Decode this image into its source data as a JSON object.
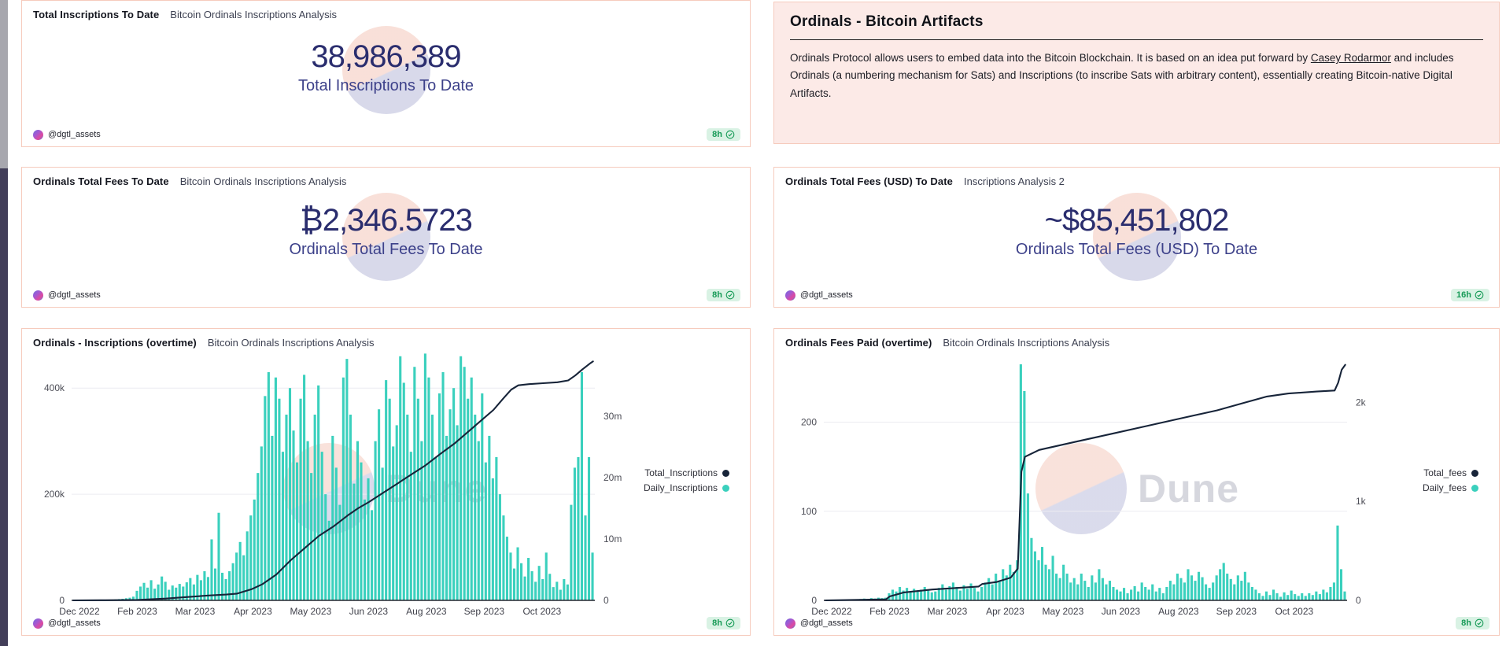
{
  "colors": {
    "bars_teal": "#3ad0bd",
    "line_navy": "#172439",
    "card_border": "#f6cbbd",
    "rose_bg": "#fceae7",
    "value_indigo": "#2a2d6e",
    "badge_green": "#169a56",
    "watermark_peach": "#f8ddd5",
    "watermark_lavender": "#d4d5e8"
  },
  "watermark": {
    "label": "Dune"
  },
  "cards": {
    "inscriptions_counter": {
      "title": "Total Inscriptions To Date",
      "subtitle": "Bitcoin Ordinals Inscriptions Analysis",
      "value": "38,986,389",
      "label": "Total Inscriptions To Date",
      "author": "@dgtl_assets",
      "updated": "8h"
    },
    "artifacts": {
      "title": "Ordinals - Bitcoin Artifacts",
      "body_1": "Ordinals Protocol allows users to embed data into the Bitcoin Blockchain. It is based on an idea put forward by ",
      "link_text": "Casey Rodarmor",
      "body_2": " and includes Ordinals (a numbering mechanism for Sats) and Inscriptions (to inscribe Sats with arbitrary content), essentially creating Bitcoin-native Digital Artifacts."
    },
    "fees_btc_counter": {
      "title": "Ordinals Total Fees To Date",
      "subtitle": "Bitcoin Ordinals Inscriptions Analysis",
      "value": "₿2,346.5723",
      "label": "Ordinals Total Fees To Date",
      "author": "@dgtl_assets",
      "updated": "8h"
    },
    "fees_usd_counter": {
      "title": "Ordinals Total Fees (USD) To Date",
      "subtitle": "Inscriptions Analysis 2",
      "value": "~$85,451,802",
      "label": "Ordinals Total Fees (USD) To Date",
      "author": "@dgtl_assets",
      "updated": "16h"
    },
    "inscriptions_chart": {
      "title": "Ordinals - Inscriptions (overtime)",
      "subtitle": "Bitcoin Ordinals Inscriptions Analysis",
      "author": "@dgtl_assets",
      "updated": "8h"
    },
    "fees_chart": {
      "title": "Ordinals Fees Paid (overtime)",
      "subtitle": "Bitcoin Ordinals Inscriptions Analysis",
      "author": "@dgtl_assets",
      "updated": "8h"
    }
  },
  "chart_data": [
    {
      "id": "inscriptions",
      "type": "bar+line",
      "title": "Ordinals - Inscriptions (overtime)",
      "x_range": "Dec 2022 - Nov 2023",
      "x_ticks": [
        "Dec 2022",
        "Feb 2023",
        "Mar 2023",
        "Apr 2023",
        "May 2023",
        "Jun 2023",
        "Aug 2023",
        "Sep 2023",
        "Oct 2023"
      ],
      "grid": true,
      "legend_position": "right-middle",
      "left_axis": {
        "unit": "daily inscriptions (thousands)",
        "max": 470,
        "ticks": [
          {
            "v": 0,
            "label": "0"
          },
          {
            "v": 200,
            "label": "200k"
          },
          {
            "v": 400,
            "label": "400k"
          }
        ]
      },
      "right_axis": {
        "unit": "cumulative inscriptions (millions)",
        "max": 40.6,
        "ticks": [
          {
            "v": 0,
            "label": "0"
          },
          {
            "v": 10,
            "label": "10m"
          },
          {
            "v": 20,
            "label": "20m"
          },
          {
            "v": 30,
            "label": "30m"
          }
        ]
      },
      "legend": [
        {
          "name": "Total_Inscriptions",
          "color": "#172439"
        },
        {
          "name": "Daily_Inscriptions",
          "color": "#3ad0bd"
        }
      ],
      "bars": {
        "name": "Daily_Inscriptions",
        "axis": "left",
        "color": "#3ad0bd",
        "values": [
          0.3,
          0.4,
          0.3,
          0.5,
          0.4,
          0.3,
          0.4,
          0.5,
          0.4,
          0.6,
          0.9,
          1.2,
          1.8,
          2.4,
          3,
          4,
          5,
          7,
          18,
          26,
          33,
          24,
          38,
          22,
          30,
          45,
          35,
          20,
          28,
          24,
          31,
          26,
          34,
          42,
          30,
          48,
          38,
          55,
          44,
          115,
          60,
          165,
          52,
          40,
          55,
          70,
          90,
          110,
          85,
          130,
          160,
          190,
          240,
          290,
          385,
          430,
          310,
          420,
          380,
          280,
          350,
          400,
          320,
          260,
          380,
          425,
          300,
          240,
          350,
          405,
          280,
          200,
          150,
          310,
          250,
          180,
          420,
          455,
          350,
          220,
          300,
          260,
          190,
          230,
          170,
          300,
          360,
          250,
          415,
          380,
          290,
          330,
          460,
          410,
          350,
          280,
          440,
          380,
          300,
          465,
          420,
          350,
          270,
          390,
          430,
          310,
          360,
          400,
          330,
          460,
          440,
          380,
          420,
          350,
          300,
          390,
          260,
          310,
          230,
          270,
          200,
          160,
          120,
          90,
          60,
          100,
          70,
          45,
          80,
          55,
          35,
          65,
          40,
          90,
          50,
          25,
          35,
          20,
          40,
          30,
          180,
          250,
          270,
          430,
          160,
          270,
          90
        ]
      },
      "line": {
        "name": "Total_Inscriptions",
        "axis": "right",
        "color": "#172439",
        "anchors": [
          [
            0,
            0
          ],
          [
            9,
            0.02
          ],
          [
            18,
            0.08
          ],
          [
            26,
            0.3
          ],
          [
            31,
            0.5
          ],
          [
            38,
            0.8
          ],
          [
            43,
            0.95
          ],
          [
            46,
            1.1
          ],
          [
            50,
            1.8
          ],
          [
            53,
            2.6
          ],
          [
            57,
            4.2
          ],
          [
            61,
            6.5
          ],
          [
            65,
            8.5
          ],
          [
            69,
            10.5
          ],
          [
            73,
            12
          ],
          [
            77,
            13.8
          ],
          [
            80,
            15
          ],
          [
            83,
            16
          ],
          [
            87,
            17.5
          ],
          [
            91,
            19
          ],
          [
            95,
            20.5
          ],
          [
            99,
            22
          ],
          [
            103,
            23.8
          ],
          [
            107,
            25.5
          ],
          [
            111,
            27.5
          ],
          [
            115,
            29.5
          ],
          [
            118,
            31
          ],
          [
            121,
            33
          ],
          [
            123,
            34.3
          ],
          [
            125,
            35
          ],
          [
            128,
            35.2
          ],
          [
            132,
            35.35
          ],
          [
            136,
            35.5
          ],
          [
            139,
            35.8
          ],
          [
            141,
            36.6
          ],
          [
            143,
            37.6
          ],
          [
            145,
            38.5
          ],
          [
            146,
            38.9
          ]
        ]
      }
    },
    {
      "id": "fees",
      "type": "bar+line",
      "title": "Ordinals Fees Paid (overtime)",
      "x_range": "Dec 2022 - Nov 2023",
      "x_ticks": [
        "Dec 2022",
        "Feb 2023",
        "Mar 2023",
        "Apr 2023",
        "May 2023",
        "Jun 2023",
        "Aug 2023",
        "Sep 2023",
        "Oct 2023"
      ],
      "grid": true,
      "legend_position": "right-middle",
      "left_axis": {
        "unit": "daily fees (BTC)",
        "max": 280,
        "ticks": [
          {
            "v": 0,
            "label": "0"
          },
          {
            "v": 100,
            "label": "100"
          },
          {
            "v": 200,
            "label": "200"
          }
        ]
      },
      "right_axis": {
        "unit": "cumulative fees (BTC)",
        "max": 2520,
        "ticks": [
          {
            "v": 0,
            "label": "0"
          },
          {
            "v": 1000,
            "label": "1k"
          },
          {
            "v": 2000,
            "label": "2k"
          }
        ]
      },
      "legend": [
        {
          "name": "Total_fees",
          "color": "#172439"
        },
        {
          "name": "Daily_fees",
          "color": "#3ad0bd"
        }
      ],
      "bars": {
        "name": "Daily_fees",
        "axis": "left",
        "color": "#3ad0bd",
        "values": [
          0.3,
          0.4,
          0.3,
          0.5,
          0.4,
          0.3,
          0.4,
          0.5,
          0.4,
          1,
          1.5,
          2,
          1.5,
          2.5,
          2,
          3,
          2.5,
          3,
          8,
          12,
          10,
          15,
          11,
          14,
          9,
          13,
          10,
          12,
          15,
          11,
          9,
          10,
          14,
          18,
          12,
          16,
          20,
          15,
          11,
          17,
          13,
          19,
          14,
          10,
          15,
          20,
          25,
          18,
          30,
          22,
          35,
          28,
          40,
          32,
          45,
          265,
          235,
          120,
          70,
          55,
          45,
          60,
          40,
          35,
          50,
          30,
          25,
          40,
          30,
          20,
          25,
          18,
          30,
          22,
          15,
          28,
          20,
          35,
          25,
          18,
          22,
          15,
          12,
          10,
          14,
          8,
          12,
          16,
          10,
          20,
          15,
          12,
          18,
          10,
          14,
          8,
          15,
          22,
          18,
          30,
          25,
          20,
          35,
          28,
          22,
          32,
          26,
          18,
          14,
          20,
          28,
          35,
          42,
          30,
          24,
          18,
          28,
          22,
          32,
          20,
          15,
          12,
          8,
          5,
          10,
          6,
          12,
          8,
          4,
          9,
          6,
          11,
          7,
          5,
          8,
          5,
          8,
          6,
          10,
          7,
          12,
          9,
          15,
          20,
          84,
          35,
          10
        ]
      },
      "line": {
        "name": "Total_fees",
        "axis": "right",
        "color": "#172439",
        "anchors": [
          [
            0,
            0
          ],
          [
            17,
            10
          ],
          [
            18,
            40
          ],
          [
            22,
            80
          ],
          [
            30,
            110
          ],
          [
            43,
            140
          ],
          [
            44,
            165
          ],
          [
            48,
            185
          ],
          [
            52,
            230
          ],
          [
            54,
            320
          ],
          [
            55,
            1300
          ],
          [
            56,
            1450
          ],
          [
            60,
            1520
          ],
          [
            70,
            1600
          ],
          [
            80,
            1680
          ],
          [
            90,
            1760
          ],
          [
            100,
            1840
          ],
          [
            110,
            1920
          ],
          [
            118,
            2000
          ],
          [
            124,
            2060
          ],
          [
            130,
            2090
          ],
          [
            138,
            2110
          ],
          [
            143,
            2120
          ],
          [
            144,
            2200
          ],
          [
            145,
            2330
          ],
          [
            146,
            2380
          ]
        ]
      }
    }
  ]
}
